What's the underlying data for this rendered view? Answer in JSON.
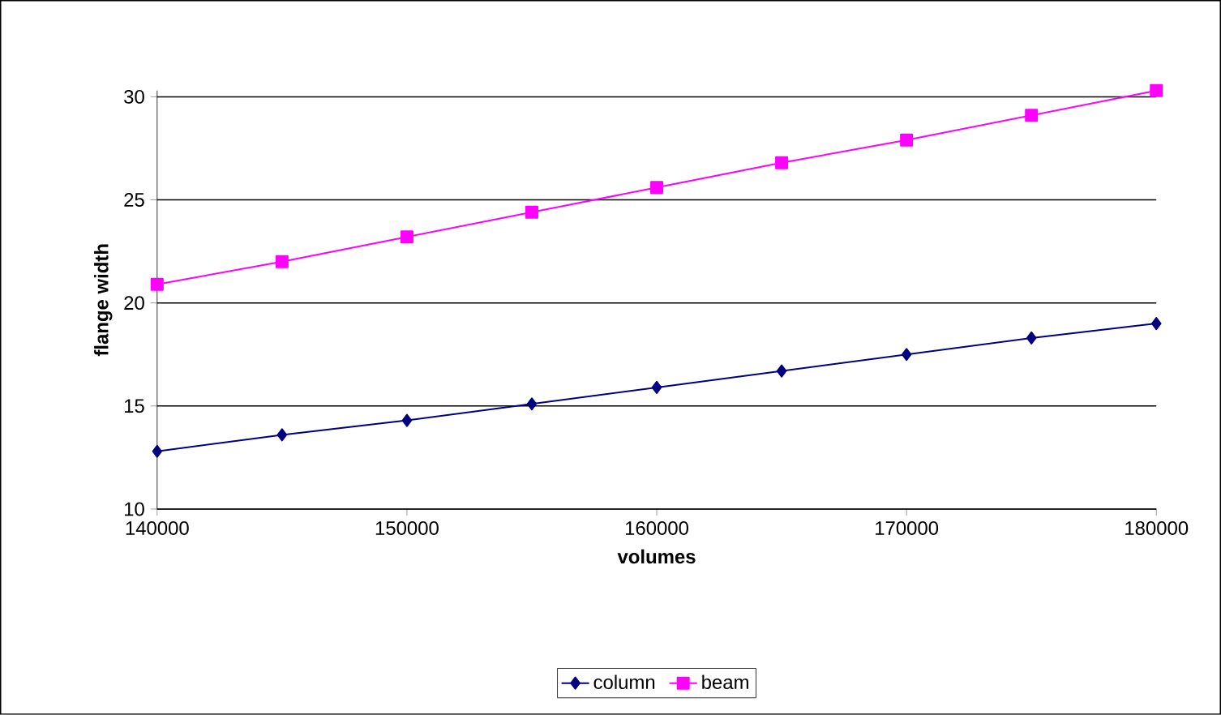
{
  "chart_data": {
    "type": "line",
    "xlabel": "volumes",
    "ylabel": "flange width",
    "x": [
      140000,
      145000,
      150000,
      155000,
      160000,
      165000,
      170000,
      175000,
      180000
    ],
    "series": [
      {
        "name": "column",
        "color": "#000080",
        "marker": "diamond",
        "values": [
          12.8,
          13.6,
          14.3,
          15.1,
          15.9,
          16.7,
          17.5,
          18.3,
          19.0
        ]
      },
      {
        "name": "beam",
        "color": "#ff00ff",
        "marker": "square",
        "values": [
          20.9,
          22.0,
          23.2,
          24.4,
          25.6,
          26.8,
          27.9,
          29.1,
          30.3
        ]
      }
    ],
    "xlim": [
      140000,
      180000
    ],
    "xticks": [
      140000,
      150000,
      160000,
      170000,
      180000
    ],
    "ylim": [
      10,
      30.3
    ],
    "yticks": [
      10,
      15,
      20,
      25,
      30
    ],
    "grid": "y",
    "legend": "bottom",
    "line_style": "solid"
  }
}
